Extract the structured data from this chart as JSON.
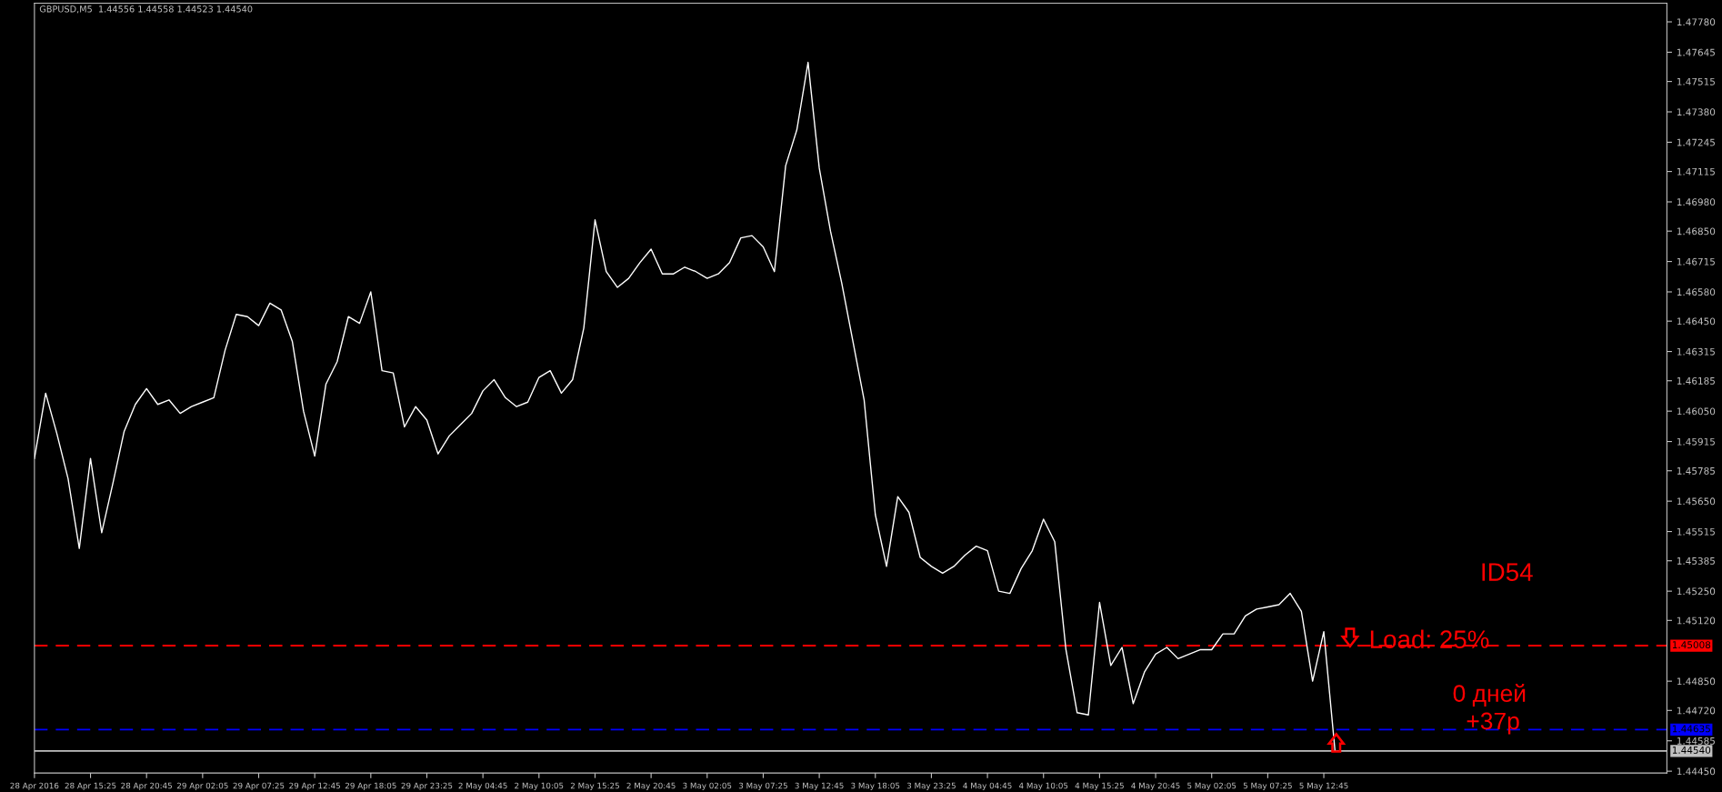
{
  "chart_data": {
    "type": "line",
    "title": "GBPUSD,M5  1.44556 1.44558 1.44523 1.44540",
    "categories": [
      "28 Apr 2016",
      null,
      null,
      null,
      null,
      "28 Apr 15:25",
      null,
      null,
      null,
      null,
      "28 Apr 20:45",
      null,
      null,
      null,
      null,
      "29 Apr 02:05",
      null,
      null,
      null,
      null,
      "29 Apr 07:25",
      null,
      null,
      null,
      null,
      "29 Apr 12:45",
      null,
      null,
      null,
      null,
      "29 Apr 18:05",
      null,
      null,
      null,
      null,
      "29 Apr 23:25",
      null,
      null,
      null,
      null,
      "2 May 04:45",
      null,
      null,
      null,
      null,
      "2 May 10:05",
      null,
      null,
      null,
      null,
      "2 May 15:25",
      null,
      null,
      null,
      null,
      "2 May 20:45",
      null,
      null,
      null,
      null,
      "3 May 02:05",
      null,
      null,
      null,
      null,
      "3 May 07:25",
      null,
      null,
      null,
      null,
      "3 May 12:45",
      null,
      null,
      null,
      null,
      "3 May 18:05",
      null,
      null,
      null,
      null,
      "3 May 23:25",
      null,
      null,
      null,
      null,
      "4 May 04:45",
      null,
      null,
      null,
      null,
      "4 May 10:05",
      null,
      null,
      null,
      null,
      "4 May 15:25",
      null,
      null,
      null,
      null,
      "4 May 20:45",
      null,
      null,
      null,
      null,
      "5 May 02:05",
      null,
      null,
      null,
      null,
      "5 May 07:25",
      null,
      null,
      null,
      null,
      "5 May 12:45",
      null,
      null,
      null,
      null,
      null,
      null,
      null,
      null,
      null,
      null,
      null,
      null,
      null,
      null,
      null,
      null,
      null,
      null,
      null,
      null,
      null,
      null,
      null,
      null,
      null,
      null,
      null,
      null,
      null,
      null
    ],
    "series": [
      {
        "color": "#ffffff",
        "values": [
          1.4584,
          1.4613,
          1.4595,
          1.4575,
          1.4544,
          1.4584,
          1.4551,
          1.4573,
          1.4596,
          1.4608,
          1.4615,
          1.4608,
          1.461,
          1.4604,
          1.4607,
          1.4609,
          1.4611,
          1.4632,
          1.4648,
          1.4647,
          1.4643,
          1.4653,
          1.465,
          1.4636,
          1.4605,
          1.4585,
          1.4617,
          1.4627,
          1.4647,
          1.4644,
          1.4658,
          1.4623,
          1.4622,
          1.4598,
          1.4607,
          1.4601,
          1.4586,
          1.4594,
          1.4599,
          1.4604,
          1.4614,
          1.4619,
          1.4611,
          1.4607,
          1.4609,
          1.462,
          1.4623,
          1.4613,
          1.4619,
          1.4642,
          1.469,
          1.4667,
          1.466,
          1.4664,
          1.4671,
          1.4677,
          1.4666,
          1.4666,
          1.4669,
          1.4667,
          1.4664,
          1.4666,
          1.4671,
          1.4682,
          1.4683,
          1.4678,
          1.4667,
          1.4714,
          1.473,
          1.476,
          1.4713,
          1.4685,
          1.4662,
          1.4636,
          1.461,
          1.4559,
          1.4536,
          1.4567,
          1.456,
          1.454,
          1.4536,
          1.4533,
          1.4536,
          1.4541,
          1.4545,
          1.4543,
          1.4525,
          1.4524,
          1.4535,
          1.4543,
          1.4557,
          1.4547,
          1.4499,
          1.4471,
          1.447,
          1.452,
          1.4492,
          1.45,
          1.4475,
          1.4489,
          1.4497,
          1.45,
          1.4495,
          1.4497,
          1.4499,
          1.4499,
          1.4506,
          1.4506,
          1.4514,
          1.4517,
          1.4518,
          1.4519,
          1.4524,
          1.4516,
          1.4485,
          1.4507,
          1.4454,
          null,
          null,
          null,
          null,
          null,
          null,
          null,
          null,
          null,
          null,
          null,
          null,
          null,
          null,
          null,
          null,
          null,
          null,
          null,
          null,
          null,
          null,
          null,
          null,
          null,
          null,
          null,
          null,
          null
        ]
      }
    ],
    "ylim": [
      1.44442,
      1.47863
    ],
    "yticks": [
      {
        "value": 1.4778,
        "label": "1.47780"
      },
      {
        "value": 1.47645,
        "label": "1.47645"
      },
      {
        "value": 1.47515,
        "label": "1.47515"
      },
      {
        "value": 1.4738,
        "label": "1.47380"
      },
      {
        "value": 1.47245,
        "label": "1.47245"
      },
      {
        "value": 1.47115,
        "label": "1.47115"
      },
      {
        "value": 1.4698,
        "label": "1.46980"
      },
      {
        "value": 1.4685,
        "label": "1.46850"
      },
      {
        "value": 1.46715,
        "label": "1.46715"
      },
      {
        "value": 1.4658,
        "label": "1.46580"
      },
      {
        "value": 1.4645,
        "label": "1.46450"
      },
      {
        "value": 1.46315,
        "label": "1.46315"
      },
      {
        "value": 1.46185,
        "label": "1.46185"
      },
      {
        "value": 1.4605,
        "label": "1.46050"
      },
      {
        "value": 1.45915,
        "label": "1.45915"
      },
      {
        "value": 1.45785,
        "label": "1.45785"
      },
      {
        "value": 1.4565,
        "label": "1.45650"
      },
      {
        "value": 1.45515,
        "label": "1.45515"
      },
      {
        "value": 1.45385,
        "label": "1.45385"
      },
      {
        "value": 1.4525,
        "label": "1.45250"
      },
      {
        "value": 1.4512,
        "label": "1.45120"
      },
      {
        "value": 1.4485,
        "label": "1.44850"
      },
      {
        "value": 1.4472,
        "label": "1.44720"
      },
      {
        "value": 1.44585,
        "label": "1.44585"
      },
      {
        "value": 1.4445,
        "label": "1.44450"
      }
    ],
    "line_style": "solid",
    "ref_lines": [
      {
        "axis": "y",
        "value": 1.45008,
        "label": "1.45008",
        "color": "#ff0000",
        "line_style": "dashed"
      },
      {
        "axis": "y",
        "value": 1.44635,
        "label": "1.44635",
        "color": "#0000ff",
        "line_style": "dashed"
      },
      {
        "axis": "y",
        "value": 1.4454,
        "label": "1.44540",
        "color": "#c0c0c0",
        "line_style": "solid"
      }
    ],
    "annotations": [
      "ID54",
      "Load: 25%",
      "0 дней",
      "+37р"
    ]
  }
}
